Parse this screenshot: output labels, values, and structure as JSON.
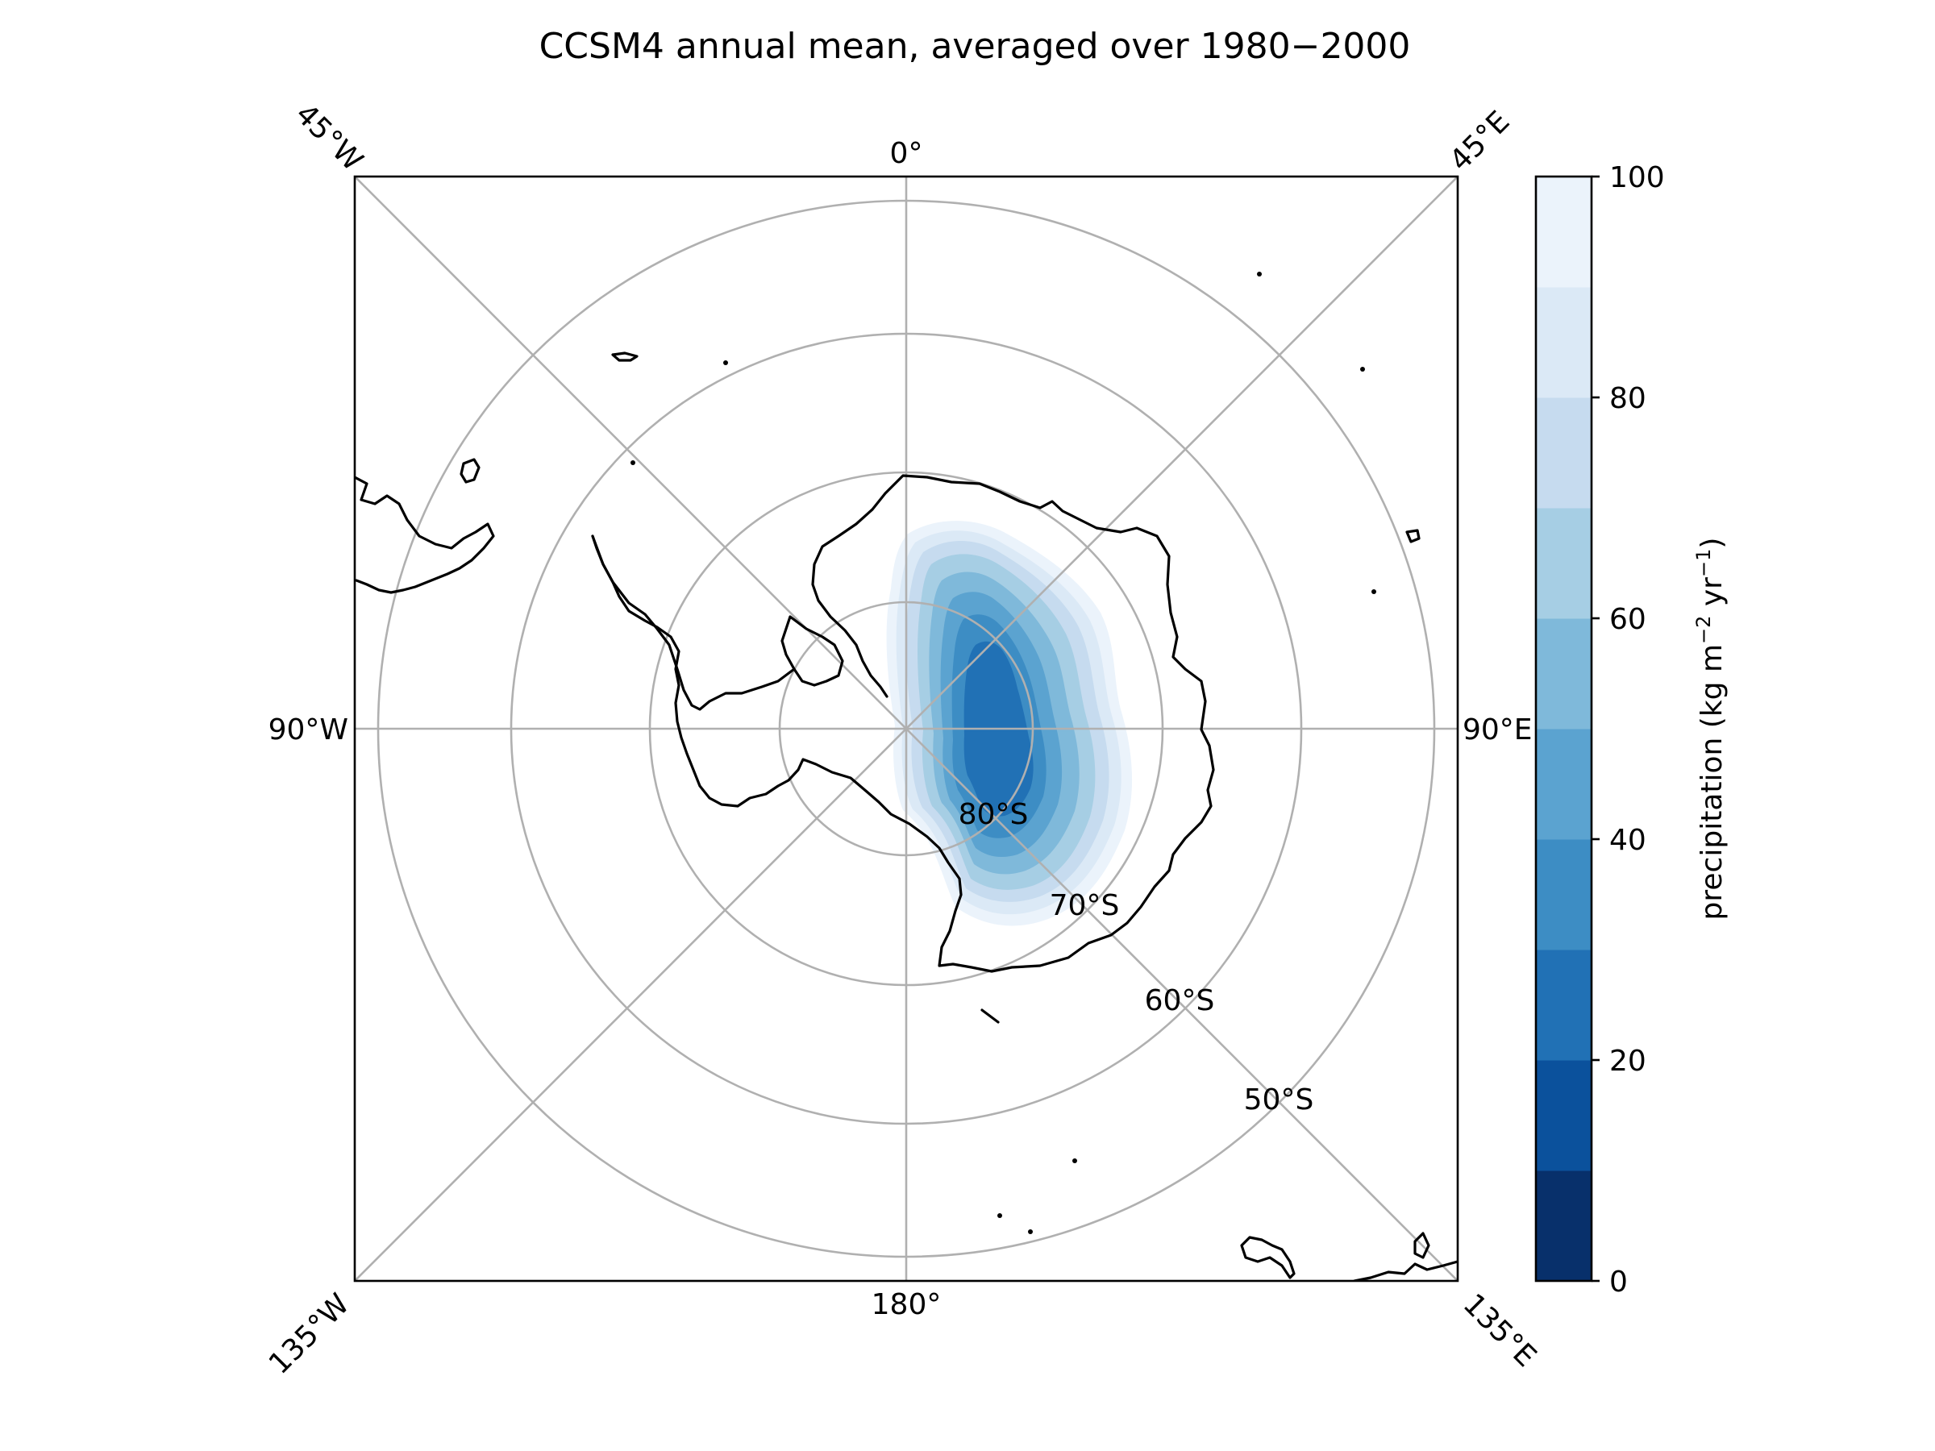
{
  "title": "CCSM4 annual mean, averaged over 1980−2000",
  "map": {
    "projection": "south-polar-stereographic",
    "meridian_labels": {
      "top": "0°",
      "bottom": "180°",
      "left": "90°W",
      "right": "90°E",
      "corner_top_left": "45°W",
      "corner_top_right": "45°E",
      "corner_bottom_left": "135°W",
      "corner_bottom_right": "135°E"
    },
    "parallel_labels": [
      "80°S",
      "70°S",
      "60°S",
      "50°S"
    ],
    "gridlines": true,
    "coastline_color": "#000000",
    "gridline_color": "#b0b0b0"
  },
  "colorbar": {
    "label": "precipitation (kg m",
    "label_exp1": "−2",
    "label_mid": " yr",
    "label_exp2": "−1",
    "label_end": ")",
    "levels": [
      0,
      10,
      20,
      30,
      40,
      50,
      60,
      70,
      80,
      90,
      100
    ],
    "tick_labels": [
      "0",
      "20",
      "40",
      "60",
      "80",
      "100"
    ],
    "colors": [
      "#08306b",
      "#0b519c",
      "#2171b5",
      "#3d8dc4",
      "#5ba3d0",
      "#7fb9da",
      "#a6cee4",
      "#c6dbef",
      "#dbe9f6",
      "#ebf3fb"
    ]
  }
}
